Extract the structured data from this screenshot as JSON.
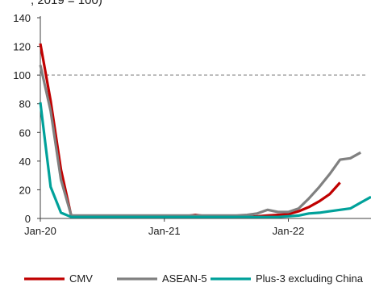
{
  "header_fragment": ", 2019 = 100)",
  "chart_data": {
    "type": "line",
    "x_tick_labels": [
      "Jan-20",
      "Jan-21",
      "Jan-22"
    ],
    "x_tick_positions": [
      "2020-01",
      "2021-01",
      "2022-01"
    ],
    "ylim": [
      0,
      140
    ],
    "y_ticks": [
      0,
      20,
      40,
      60,
      80,
      100,
      120,
      140
    ],
    "grid": false,
    "legend_position": "bottom",
    "reference_line": {
      "value": 100,
      "style": "dashed",
      "color": "#a6a6a6"
    },
    "series": [
      {
        "name": "CMV",
        "color": "#c00000",
        "points": [
          [
            "2020-01",
            122
          ],
          [
            "2020-02",
            82
          ],
          [
            "2020-03",
            34
          ],
          [
            "2020-04",
            1.5
          ],
          [
            "2020-05",
            1.5
          ],
          [
            "2020-06",
            1.5
          ],
          [
            "2020-07",
            1.5
          ],
          [
            "2020-08",
            1.5
          ],
          [
            "2020-09",
            1.5
          ],
          [
            "2020-10",
            1.5
          ],
          [
            "2020-11",
            1.5
          ],
          [
            "2020-12",
            1.5
          ],
          [
            "2021-01",
            1.5
          ],
          [
            "2021-02",
            1.5
          ],
          [
            "2021-03",
            1.5
          ],
          [
            "2021-04",
            2.5
          ],
          [
            "2021-05",
            1.5
          ],
          [
            "2021-06",
            1.5
          ],
          [
            "2021-07",
            1.5
          ],
          [
            "2021-08",
            1
          ],
          [
            "2021-09",
            1
          ],
          [
            "2021-10",
            1.5
          ],
          [
            "2021-11",
            2
          ],
          [
            "2021-12",
            2.5
          ],
          [
            "2022-01",
            3
          ],
          [
            "2022-02",
            5
          ],
          [
            "2022-03",
            8
          ],
          [
            "2022-04",
            12
          ],
          [
            "2022-05",
            17
          ],
          [
            "2022-06",
            25
          ]
        ]
      },
      {
        "name": "ASEAN-5",
        "color": "#808080",
        "points": [
          [
            "2020-01",
            107
          ],
          [
            "2020-02",
            75
          ],
          [
            "2020-03",
            27
          ],
          [
            "2020-04",
            2
          ],
          [
            "2020-05",
            2
          ],
          [
            "2020-06",
            2
          ],
          [
            "2020-07",
            2
          ],
          [
            "2020-08",
            2
          ],
          [
            "2020-09",
            2
          ],
          [
            "2020-10",
            2
          ],
          [
            "2020-11",
            2
          ],
          [
            "2020-12",
            2
          ],
          [
            "2021-01",
            2
          ],
          [
            "2021-02",
            2
          ],
          [
            "2021-03",
            2
          ],
          [
            "2021-04",
            2
          ],
          [
            "2021-05",
            2
          ],
          [
            "2021-06",
            2
          ],
          [
            "2021-07",
            2
          ],
          [
            "2021-08",
            2
          ],
          [
            "2021-09",
            2.5
          ],
          [
            "2021-10",
            3.5
          ],
          [
            "2021-11",
            6
          ],
          [
            "2021-12",
            4.5
          ],
          [
            "2022-01",
            4.5
          ],
          [
            "2022-02",
            7
          ],
          [
            "2022-03",
            14
          ],
          [
            "2022-04",
            22
          ],
          [
            "2022-05",
            31
          ],
          [
            "2022-06",
            41
          ],
          [
            "2022-07",
            42
          ],
          [
            "2022-08",
            46
          ]
        ]
      },
      {
        "name": "Plus-3 excluding China",
        "color": "#00a19a",
        "points": [
          [
            "2020-01",
            81
          ],
          [
            "2020-02",
            22
          ],
          [
            "2020-03",
            4
          ],
          [
            "2020-04",
            1
          ],
          [
            "2020-05",
            1
          ],
          [
            "2020-06",
            1
          ],
          [
            "2020-07",
            1
          ],
          [
            "2020-08",
            1
          ],
          [
            "2020-09",
            1
          ],
          [
            "2020-10",
            1
          ],
          [
            "2020-11",
            1
          ],
          [
            "2020-12",
            1
          ],
          [
            "2021-01",
            1
          ],
          [
            "2021-02",
            1
          ],
          [
            "2021-03",
            1
          ],
          [
            "2021-04",
            1
          ],
          [
            "2021-05",
            1
          ],
          [
            "2021-06",
            1
          ],
          [
            "2021-07",
            1
          ],
          [
            "2021-08",
            1
          ],
          [
            "2021-09",
            1
          ],
          [
            "2021-10",
            1
          ],
          [
            "2021-11",
            1
          ],
          [
            "2021-12",
            1
          ],
          [
            "2022-01",
            1.5
          ],
          [
            "2022-02",
            2
          ],
          [
            "2022-03",
            3.5
          ],
          [
            "2022-04",
            4
          ],
          [
            "2022-05",
            5
          ],
          [
            "2022-06",
            6
          ],
          [
            "2022-07",
            7
          ],
          [
            "2022-08",
            11
          ],
          [
            "2022-09",
            15
          ]
        ]
      }
    ]
  }
}
